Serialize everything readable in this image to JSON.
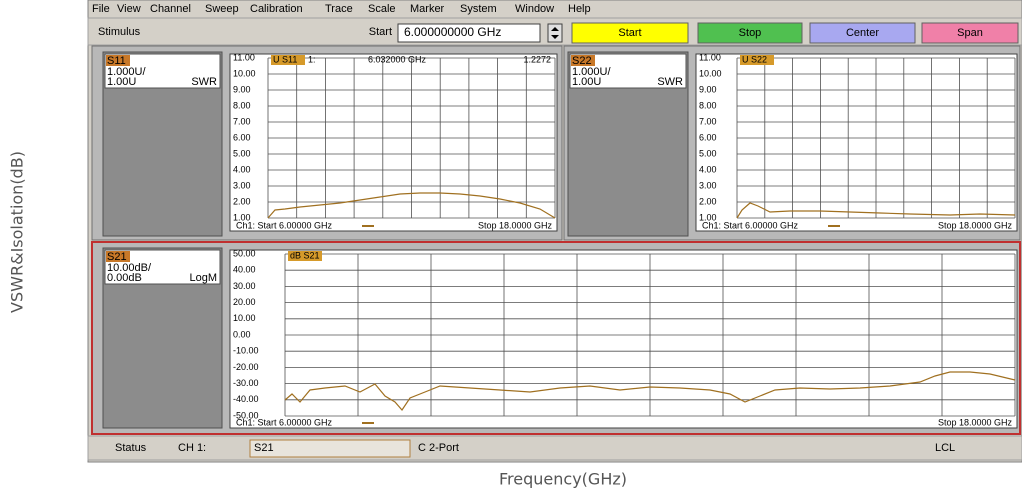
{
  "axis_labels": {
    "y": "VSWR&Isolation(dB)",
    "x": "Frequency(GHz)"
  },
  "menu": [
    "File",
    "View",
    "Channel",
    "Sweep",
    "Calibration",
    "Trace",
    "Scale",
    "Marker",
    "System",
    "Window",
    "Help"
  ],
  "toolbar": {
    "label": "Stimulus",
    "start_label": "Start",
    "start_value": "6.000000000 GHz",
    "buttons": [
      "Start",
      "Stop",
      "Center",
      "Span"
    ]
  },
  "panels": [
    {
      "param": "S11",
      "scale": "1.000U/",
      "ref": "1.00U",
      "format": "SWR",
      "trace_label": "U S11",
      "marker": "1:",
      "marker_freq": "6.032000 GHz",
      "marker_value": "1.2272",
      "y_labels": [
        "11.00",
        "10.00",
        "9.00",
        "8.00",
        "7.00",
        "6.00",
        "5.00",
        "4.00",
        "3.00",
        "2.00",
        "1.00"
      ],
      "start": "Ch1: Start 6.00000 GHz",
      "stop": "Stop 18.0000 GHz"
    },
    {
      "param": "S22",
      "scale": "1.000U/",
      "ref": "1.00U",
      "format": "SWR",
      "trace_label": "U S22",
      "y_labels": [
        "11.00",
        "10.00",
        "9.00",
        "8.00",
        "7.00",
        "6.00",
        "5.00",
        "4.00",
        "3.00",
        "2.00",
        "1.00"
      ],
      "start": "Ch1: Start 6.00000 GHz",
      "stop": "Stop 18.0000 GHz"
    },
    {
      "param": "S21",
      "scale": "10.00dB/",
      "ref": "0.00dB",
      "format": "LogM",
      "trace_label": "dB S21",
      "y_labels": [
        "50.00",
        "40.00",
        "30.00",
        "20.00",
        "10.00",
        "0.00",
        "-10.00",
        "-20.00",
        "-30.00",
        "-40.00",
        "-50.00"
      ],
      "start": "Ch1: Start 6.00000 GHz",
      "stop": "Stop 18.0000 GHz"
    }
  ],
  "status": {
    "label": "Status",
    "channel": "CH 1:",
    "param": "S21",
    "mode": "C 2-Port",
    "remote": "LCL"
  }
}
